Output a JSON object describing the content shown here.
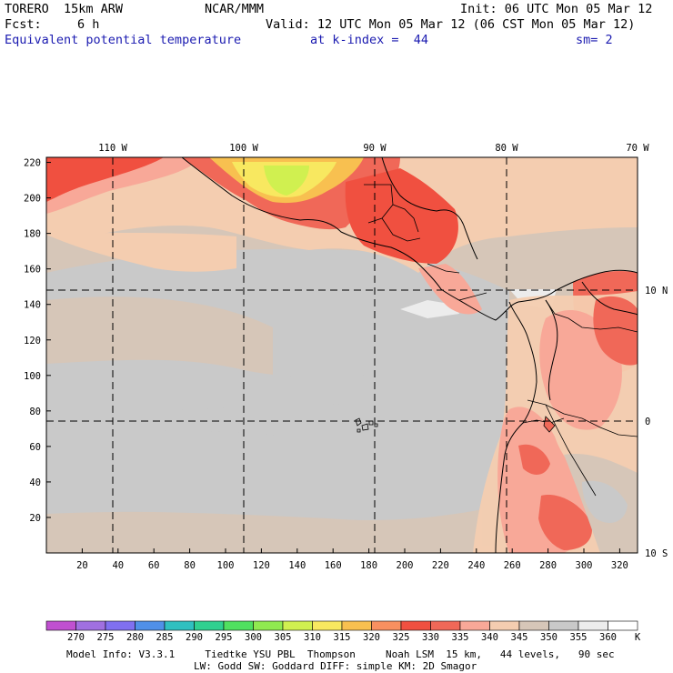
{
  "header": {
    "model": "TORERO  15km ARW",
    "center": "NCAR/MMM",
    "init": "Init: 06 UTC Mon 05 Mar 12",
    "fcst_label": "Fcst:",
    "fcst_value": "6 h",
    "valid": "Valid: 12 UTC Mon 05 Mar 12 (06 CST Mon 05 Mar 12)",
    "field": "Equivalent potential temperature",
    "level": "at k-index =  44",
    "smooth": "sm= 2"
  },
  "map": {
    "lon_labels": [
      "110 W",
      "100 W",
      "90 W",
      "80 W",
      "70 W"
    ],
    "lat_labels": [
      "10 N",
      "0",
      "10 S"
    ],
    "y_ticks": [
      "20",
      "40",
      "60",
      "80",
      "100",
      "120",
      "140",
      "160",
      "180",
      "200",
      "220"
    ],
    "x_ticks": [
      "20",
      "40",
      "60",
      "80",
      "100",
      "120",
      "140",
      "160",
      "180",
      "200",
      "220",
      "240",
      "260",
      "280",
      "300",
      "320"
    ]
  },
  "colorbar": {
    "labels": [
      "270",
      "275",
      "280",
      "285",
      "290",
      "295",
      "300",
      "305",
      "310",
      "315",
      "320",
      "325",
      "330",
      "335",
      "340",
      "345",
      "350",
      "355",
      "360",
      "K"
    ],
    "colors": [
      "#c050d0",
      "#a070e0",
      "#8070f0",
      "#5090e8",
      "#30c0c0",
      "#30d090",
      "#50e060",
      "#90ea50",
      "#d0f050",
      "#f8e860",
      "#f8c050",
      "#f89060",
      "#f05040",
      "#f06858",
      "#f8a898",
      "#f4cdb0",
      "#d6c6b8",
      "#c9c9c9",
      "#ececec",
      "#ffffff"
    ]
  },
  "footer": {
    "line1": "Model Info: V3.3.1     Tiedtke YSU PBL  Thompson     Noah LSM  15 km,   44 levels,   90 sec",
    "line2": "LW: Godd SW: Goddard DIFF: simple KM: 2D Smagor"
  }
}
